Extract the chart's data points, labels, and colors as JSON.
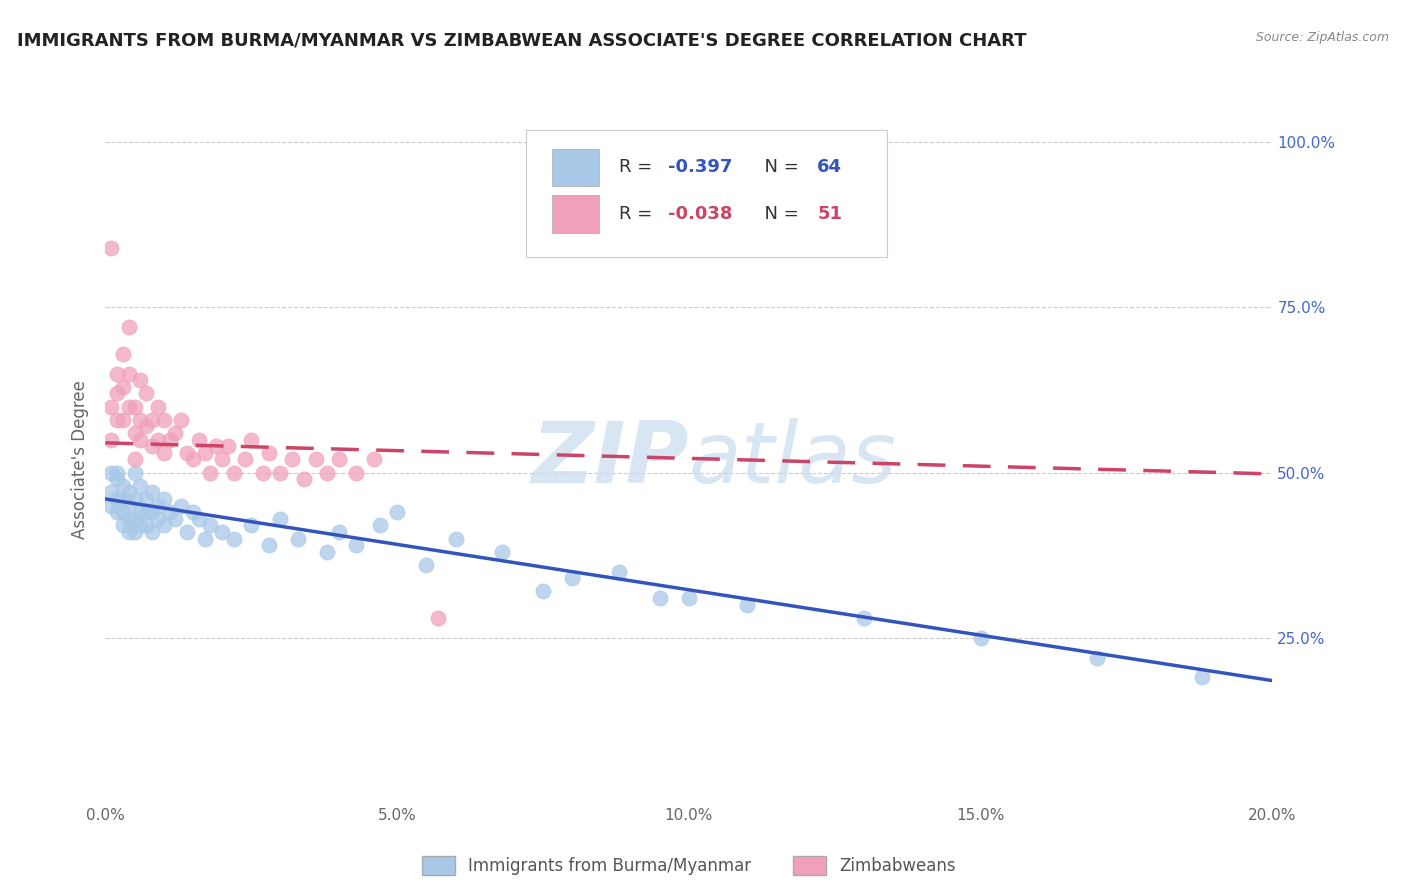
{
  "title": "IMMIGRANTS FROM BURMA/MYANMAR VS ZIMBABWEAN ASSOCIATE'S DEGREE CORRELATION CHART",
  "source": "Source: ZipAtlas.com",
  "ylabel": "Associate's Degree",
  "legend_label_blue": "Immigrants from Burma/Myanmar",
  "legend_label_pink": "Zimbabweans",
  "blue_scatter_color": "#A8C8E8",
  "pink_scatter_color": "#F0A0BC",
  "blue_line_color": "#3355BB",
  "pink_line_color": "#CC4466",
  "watermark_color": "#C8DCF0",
  "title_color": "#222222",
  "source_color": "#888888",
  "right_tick_color": "#4466CC",
  "grid_color": "#CCCCCC",
  "blue_R": "-0.397",
  "blue_N": "64",
  "pink_R": "-0.038",
  "pink_N": "51",
  "blue_x": [
    0.001,
    0.001,
    0.001,
    0.002,
    0.002,
    0.002,
    0.002,
    0.003,
    0.003,
    0.003,
    0.003,
    0.004,
    0.004,
    0.004,
    0.004,
    0.005,
    0.005,
    0.005,
    0.005,
    0.006,
    0.006,
    0.006,
    0.007,
    0.007,
    0.007,
    0.008,
    0.008,
    0.008,
    0.009,
    0.009,
    0.01,
    0.01,
    0.011,
    0.012,
    0.013,
    0.014,
    0.015,
    0.016,
    0.017,
    0.018,
    0.02,
    0.022,
    0.025,
    0.028,
    0.03,
    0.033,
    0.038,
    0.04,
    0.043,
    0.047,
    0.05,
    0.055,
    0.06,
    0.068,
    0.075,
    0.08,
    0.088,
    0.095,
    0.1,
    0.11,
    0.13,
    0.15,
    0.17,
    0.188
  ],
  "blue_y": [
    0.5,
    0.47,
    0.45,
    0.49,
    0.46,
    0.44,
    0.5,
    0.48,
    0.44,
    0.46,
    0.42,
    0.47,
    0.45,
    0.43,
    0.41,
    0.5,
    0.46,
    0.43,
    0.41,
    0.48,
    0.44,
    0.42,
    0.46,
    0.44,
    0.42,
    0.47,
    0.44,
    0.41,
    0.45,
    0.43,
    0.46,
    0.42,
    0.44,
    0.43,
    0.45,
    0.41,
    0.44,
    0.43,
    0.4,
    0.42,
    0.41,
    0.4,
    0.42,
    0.39,
    0.43,
    0.4,
    0.38,
    0.41,
    0.39,
    0.42,
    0.44,
    0.36,
    0.4,
    0.38,
    0.32,
    0.34,
    0.35,
    0.31,
    0.31,
    0.3,
    0.28,
    0.25,
    0.22,
    0.19
  ],
  "pink_x": [
    0.001,
    0.001,
    0.001,
    0.002,
    0.002,
    0.002,
    0.003,
    0.003,
    0.003,
    0.004,
    0.004,
    0.004,
    0.005,
    0.005,
    0.005,
    0.006,
    0.006,
    0.006,
    0.007,
    0.007,
    0.008,
    0.008,
    0.009,
    0.009,
    0.01,
    0.01,
    0.011,
    0.012,
    0.013,
    0.014,
    0.015,
    0.016,
    0.017,
    0.018,
    0.019,
    0.02,
    0.021,
    0.022,
    0.024,
    0.025,
    0.027,
    0.028,
    0.03,
    0.032,
    0.034,
    0.036,
    0.038,
    0.04,
    0.043,
    0.046,
    0.057
  ],
  "pink_y": [
    0.84,
    0.6,
    0.55,
    0.65,
    0.62,
    0.58,
    0.68,
    0.63,
    0.58,
    0.72,
    0.65,
    0.6,
    0.6,
    0.56,
    0.52,
    0.64,
    0.58,
    0.55,
    0.62,
    0.57,
    0.58,
    0.54,
    0.6,
    0.55,
    0.58,
    0.53,
    0.55,
    0.56,
    0.58,
    0.53,
    0.52,
    0.55,
    0.53,
    0.5,
    0.54,
    0.52,
    0.54,
    0.5,
    0.52,
    0.55,
    0.5,
    0.53,
    0.5,
    0.52,
    0.49,
    0.52,
    0.5,
    0.52,
    0.5,
    0.52,
    0.28
  ],
  "blue_trend_x": [
    0.0,
    0.2
  ],
  "blue_trend_y": [
    0.46,
    0.185
  ],
  "pink_trend_x": [
    0.0,
    0.2
  ],
  "pink_trend_y": [
    0.545,
    0.498
  ],
  "xmin": 0.0,
  "xmax": 0.2,
  "ymin": 0.0,
  "ymax": 1.04,
  "xticks": [
    0.0,
    0.05,
    0.1,
    0.15,
    0.2
  ],
  "xtick_labels": [
    "0.0%",
    "5.0%",
    "10.0%",
    "15.0%",
    "20.0%"
  ],
  "yticks": [
    0.0,
    0.25,
    0.5,
    0.75,
    1.0
  ],
  "ytick_labels_right": [
    "",
    "25.0%",
    "50.0%",
    "75.0%",
    "100.0%"
  ]
}
